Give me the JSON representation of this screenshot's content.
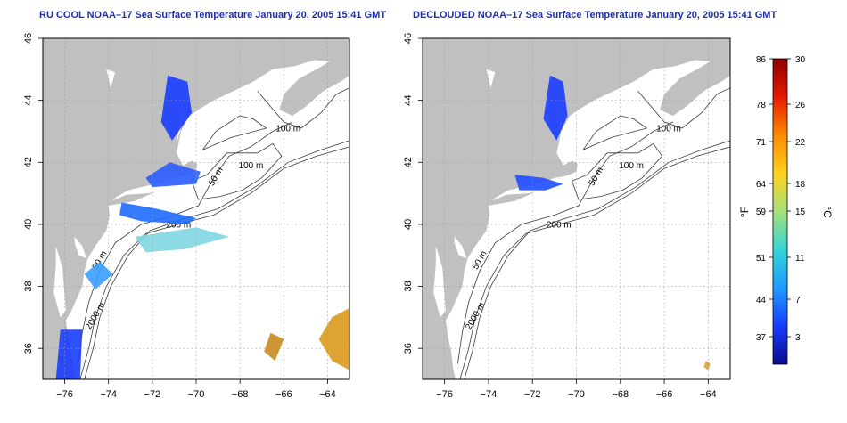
{
  "panels": [
    {
      "title": "RU COOL NOAA–17 Sea Surface Temperature January 20, 2005 15:41 GMT",
      "contour_labels": [
        "100 m",
        "100 m",
        "50 m",
        "200 m",
        "50 m",
        "2000 m"
      ]
    },
    {
      "title": "DECLOUDED NOAA–17 Sea Surface Temperature January 20, 2005 15:41 GMT",
      "contour_labels": [
        "100 m",
        "100 m",
        "50 m",
        "200 m",
        "50 m",
        "2000 m"
      ]
    }
  ],
  "axes": {
    "x_ticks": [
      "−76",
      "−74",
      "−72",
      "−70",
      "−68",
      "−66",
      "−64"
    ],
    "y_ticks": [
      "36",
      "38",
      "40",
      "42",
      "44",
      "46"
    ],
    "lon_range": [
      -77,
      -63
    ],
    "lat_range": [
      35,
      46
    ],
    "grid": "dotted"
  },
  "colorbar": {
    "fahrenheit_label": "°F",
    "celsius_label": "°C",
    "fahrenheit_ticks": [
      "86",
      "78",
      "71",
      "64",
      "59",
      "51",
      "44",
      "37"
    ],
    "celsius_ticks": [
      "30",
      "26",
      "22",
      "18",
      "15",
      "11",
      "7",
      "3"
    ],
    "colors": [
      "#0a0a8c",
      "#1a3cff",
      "#1e9bff",
      "#35d6d6",
      "#a6e07a",
      "#ffd21e",
      "#ff8a00",
      "#e61a00",
      "#8c0000"
    ]
  },
  "colors": {
    "land": "#c0c0c0",
    "ocean": "#ffffff",
    "title": "#1f2fa8"
  }
}
